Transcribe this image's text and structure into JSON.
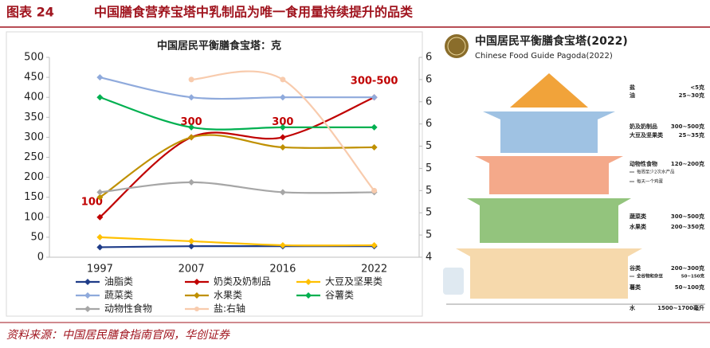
{
  "header": {
    "label": "图表 24",
    "title": "中国膳食营养宝塔中乳制品为唯一食用量持续提升的品类"
  },
  "chart_data": {
    "type": "line",
    "title": "中国居民平衡膳食宝塔：克",
    "categories": [
      "1997",
      "2007",
      "2016",
      "2022"
    ],
    "ylim": [
      0,
      500
    ],
    "yticks": [
      0,
      50,
      100,
      150,
      200,
      250,
      300,
      350,
      400,
      450,
      500
    ],
    "y2lim": [
      4.4,
      6.2
    ],
    "y2ticks": [
      {
        "value": 4.4,
        "label": "4"
      },
      {
        "value": 4.6,
        "label": "5"
      },
      {
        "value": 4.8,
        "label": "5"
      },
      {
        "value": 5.0,
        "label": "5"
      },
      {
        "value": 5.2,
        "label": "5"
      },
      {
        "value": 5.4,
        "label": "5"
      },
      {
        "value": 5.6,
        "label": "6"
      },
      {
        "value": 5.8,
        "label": "6"
      },
      {
        "value": 6.0,
        "label": "6"
      },
      {
        "value": 6.2,
        "label": "6"
      }
    ],
    "series": [
      {
        "name": "油脂类",
        "color": "#1f3c88",
        "values": [
          25,
          27.5,
          27.5,
          27.5
        ]
      },
      {
        "name": "奶类及奶制品",
        "color": "#c00000",
        "values": [
          100,
          300,
          300,
          400
        ],
        "value_labels": [
          "100",
          "300",
          "300",
          null
        ]
      },
      {
        "name": "大豆及坚果类",
        "color": "#ffc000",
        "values": [
          50,
          40,
          30,
          30
        ]
      },
      {
        "name": "蔬菜类",
        "color": "#8faadc",
        "values": [
          450,
          400,
          400,
          400
        ]
      },
      {
        "name": "水果类",
        "color": "#bf9000",
        "values": [
          150,
          300,
          275,
          275
        ]
      },
      {
        "name": "谷薯类",
        "color": "#00b050",
        "values": [
          400,
          325,
          325,
          325
        ]
      },
      {
        "name": "动物性食物",
        "color": "#a6a6a6",
        "values": [
          162.5,
          187.5,
          162.5,
          162.5
        ]
      },
      {
        "name": "盐:右轴",
        "color": "#f8cbad",
        "axis": "y2",
        "values": [
          null,
          6,
          6,
          5
        ]
      }
    ],
    "annotations": [
      "300-500"
    ],
    "legend": "bottom"
  },
  "pagoda": {
    "title": "中国居民平衡膳食宝塔(2022)",
    "subtitle": "Chinese Food Guide Pagoda(2022)",
    "items": [
      {
        "label": "盐",
        "amount": "<5克"
      },
      {
        "label": "油",
        "amount": "25~30克"
      },
      {
        "label": "奶及奶制品",
        "amount": "300~500克"
      },
      {
        "label": "大豆及坚果类",
        "amount": "25~35克"
      },
      {
        "label": "动物性食物",
        "amount": "120~200克"
      },
      {
        "label": "蔬菜类",
        "amount": "300~500克"
      },
      {
        "label": "水果类",
        "amount": "200~350克"
      },
      {
        "label": "谷类",
        "amount": "200~300克"
      },
      {
        "label": "全谷物和杂豆",
        "amount": "50~150克"
      },
      {
        "label": "薯类",
        "amount": "50~100克"
      },
      {
        "label": "水",
        "amount": "1500~1700毫升"
      }
    ],
    "notes": [
      "每周至少2次水产品",
      "每天一个鸡蛋"
    ]
  },
  "source": "资料来源：中国居民膳食指南官网，华创证券"
}
